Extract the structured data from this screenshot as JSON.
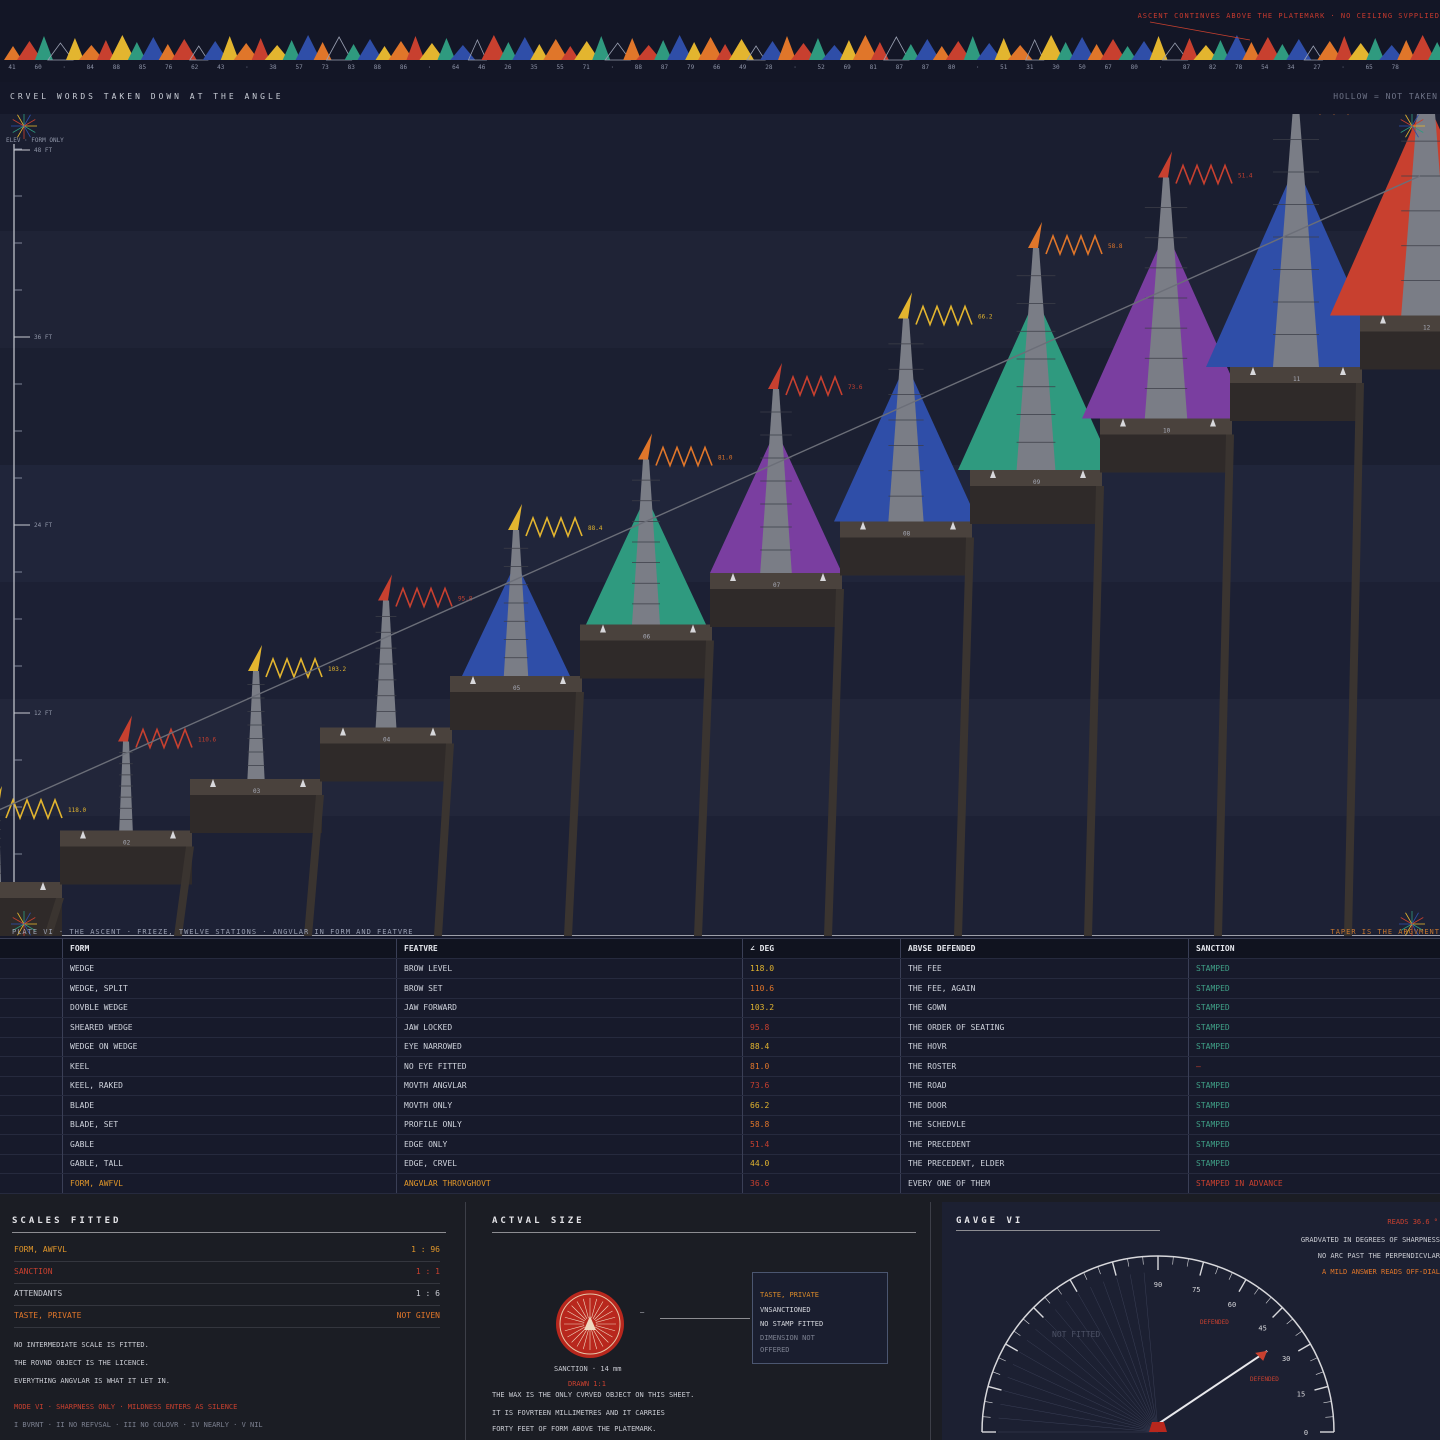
{
  "top_note": "ASCENT CONTINVES ABOVE THE PLATEMARK · NO CEILING SVPPLIED",
  "top_ticks": [
    "41",
    "60",
    "·",
    "84",
    "88",
    "85",
    "76",
    "62",
    "43",
    "·",
    "38",
    "57",
    "73",
    "83",
    "88",
    "86",
    "·",
    "64",
    "46",
    "26",
    "35",
    "55",
    "71",
    "·",
    "88",
    "87",
    "79",
    "66",
    "49",
    "28",
    "·",
    "52",
    "69",
    "81",
    "87",
    "87",
    "80",
    "·",
    "51",
    "31",
    "30",
    "50",
    "67",
    "80",
    "·",
    "87",
    "82",
    "78",
    "54",
    "34",
    "27",
    "·",
    "65",
    "78"
  ],
  "header": {
    "title": "CRVEL WORDS TAKEN DOWN AT THE ANGLE",
    "legend": "HOLLOW = NOT TAKEN"
  },
  "stage": {
    "axis_note": "ELEV · FORM ONLY",
    "elevations": [
      "48 FT",
      "36 FT",
      "24 FT",
      "12 FT",
      "00 FT"
    ],
    "stations": [
      "01",
      "02",
      "03",
      "04",
      "05",
      "06",
      "07",
      "08",
      "09",
      "10",
      "11",
      "12"
    ],
    "angles": [
      "118.0",
      "110.6",
      "103.2",
      "95.8",
      "88.4",
      "81.0",
      "73.6",
      "66.2",
      "58.8",
      "51.4",
      "44.0",
      "36.6"
    ],
    "footer_left": "PLATE VI · THE ASCENT · FRIEZE, TWELVE STATIONS · ANGVLAR IN FORM AND FEATVRE",
    "footer_right": "TAPER IS THE ARGVMENT"
  },
  "colors": {
    "red": "#c8402f",
    "orange": "#e0762a",
    "yellow": "#e3b52f",
    "green": "#2f9a7f",
    "blue": "#2f4ea8",
    "purple": "#7a3ea0",
    "grey": "#7a7d86"
  },
  "table": {
    "headers": [
      "FORM",
      "FEATVRE",
      "∠ DEG",
      "ABVSE DEFENDED",
      "SANCTION"
    ],
    "rows": [
      {
        "form": "WEDGE",
        "feature": "BROW LEVEL",
        "deg": "118.0",
        "abuse": "THE FEE",
        "sanction": "STAMPED"
      },
      {
        "form": "WEDGE, SPLIT",
        "feature": "BROW SET",
        "deg": "110.6",
        "abuse": "THE FEE, AGAIN",
        "sanction": "STAMPED"
      },
      {
        "form": "DOVBLE WEDGE",
        "feature": "JAW FORWARD",
        "deg": "103.2",
        "abuse": "THE GOWN",
        "sanction": "STAMPED"
      },
      {
        "form": "SHEARED WEDGE",
        "feature": "JAW LOCKED",
        "deg": "95.8",
        "abuse": "THE ORDER OF SEATING",
        "sanction": "STAMPED"
      },
      {
        "form": "WEDGE ON WEDGE",
        "feature": "EYE NARROWED",
        "deg": "88.4",
        "abuse": "THE HOVR",
        "sanction": "STAMPED"
      },
      {
        "form": "KEEL",
        "feature": "NO EYE FITTED",
        "deg": "81.0",
        "abuse": "THE ROSTER",
        "sanction": "—"
      },
      {
        "form": "KEEL, RAKED",
        "feature": "MOVTH ANGVLAR",
        "deg": "73.6",
        "abuse": "THE ROAD",
        "sanction": "STAMPED"
      },
      {
        "form": "BLADE",
        "feature": "MOVTH ONLY",
        "deg": "66.2",
        "abuse": "THE DOOR",
        "sanction": "STAMPED"
      },
      {
        "form": "BLADE, SET",
        "feature": "PROFILE ONLY",
        "deg": "58.8",
        "abuse": "THE SCHEDVLE",
        "sanction": "STAMPED"
      },
      {
        "form": "GABLE",
        "feature": "EDGE ONLY",
        "deg": "51.4",
        "abuse": "THE PRECEDENT",
        "sanction": "STAMPED"
      },
      {
        "form": "GABLE, TALL",
        "feature": "EDGE, CRVEL",
        "deg": "44.0",
        "abuse": "THE PRECEDENT, ELDER",
        "sanction": "STAMPED"
      },
      {
        "form": "FORM, AWFVL",
        "feature": "ANGVLAR THROVGHOVT",
        "deg": "36.6",
        "abuse": "EVERY ONE OF THEM",
        "sanction": "STAMPED IN ADVANCE"
      }
    ]
  },
  "scales": {
    "title": "SCALES FITTED",
    "rows": [
      {
        "label": "FORM, AWFVL",
        "value": "1 : 96"
      },
      {
        "label": "SANCTION",
        "value": "1 : 1"
      },
      {
        "label": "ATTENDANTS",
        "value": "1 : 6"
      },
      {
        "label": "TASTE, PRIVATE",
        "value": "NOT GIVEN"
      }
    ],
    "notes": [
      "NO INTERMEDIATE SCALE IS FITTED.",
      "THE ROVND OBJECT IS THE LICENCE.",
      "EVERYTHING ANGVLAR IS WHAT IT LET IN."
    ],
    "mode": "MODE VI · SHARPNESS ONLY · MILDNESS ENTERS AS SILENCE",
    "modes_list": "I BVRNT · II NO REFVSAL · III NO COLOVR · IV NEARLY · V NIL"
  },
  "actual": {
    "title": "ACTVAL SIZE",
    "seal_caption": "SANCTION · 14 mm",
    "drawn": "DRAWN 1:1",
    "dash": "—",
    "box": [
      "TASTE, PRIVATE",
      "VNSANCTIONED",
      "NO STAMP FITTED",
      "DIMENSION NOT",
      "OFFERED"
    ],
    "notes": [
      "THE WAX IS THE ONLY CVRVED OBJECT ON THIS SHEET.",
      "IT IS FOVRTEEN MILLIMETRES AND IT CARRIES",
      "FORTY FEET OF FORM ABOVE THE PLATEMARK."
    ]
  },
  "gauge": {
    "title": "GAVGE VI",
    "reads": "READS 36.6 °",
    "notes": [
      "GRADVATED IN DEGREES OF SHARPNESS",
      "NO ARC PAST THE PERPENDICVLAR",
      "A MILD ANSWER READS OFF-DIAL"
    ],
    "ticks": [
      "90",
      "75",
      "60",
      "45",
      "30",
      "15",
      "0"
    ],
    "not_fitted": "NOT FITTED",
    "defended_upper": "DEFENDED",
    "defended_lower": "DEFENDED",
    "reading_deg": 36.6
  }
}
